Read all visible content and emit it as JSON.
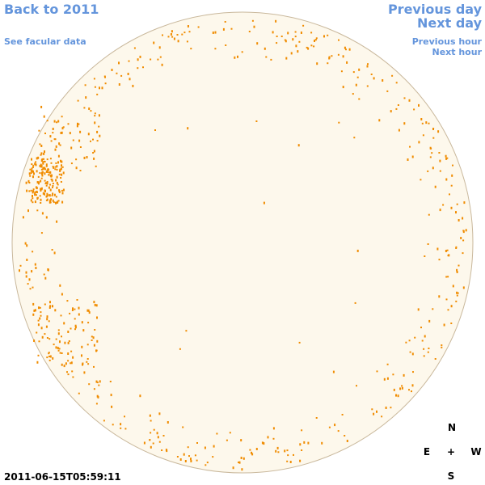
{
  "nav": {
    "back": "Back to 2011",
    "facular": "See facular data",
    "previous_day": "Previous day",
    "next_day": "Next day",
    "previous_hour": "Previous hour",
    "next_hour": "Next hour"
  },
  "timestamp": "2011-06-15T05:59:11",
  "compass": {
    "north": "N",
    "east": "E",
    "center": "+",
    "west": "W",
    "south": "S"
  }
}
